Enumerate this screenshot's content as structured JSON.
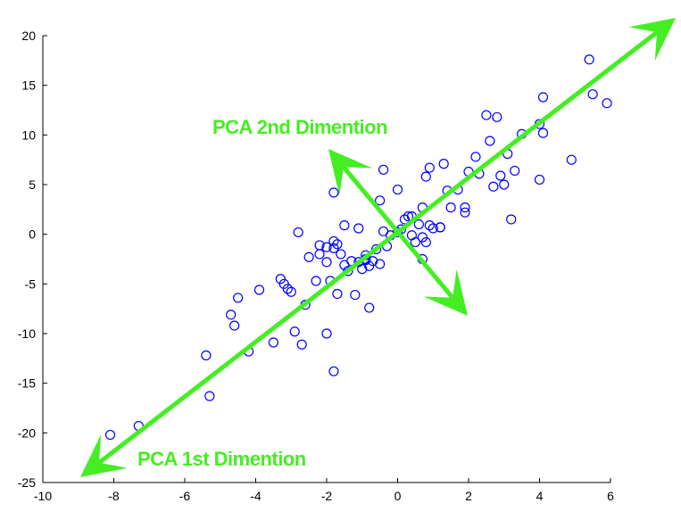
{
  "chart_data": {
    "type": "scatter",
    "title": "",
    "xlabel": "",
    "ylabel": "",
    "xlim": [
      -10,
      6
    ],
    "ylim": [
      -25,
      20
    ],
    "x_ticks": [
      -10,
      -8,
      -6,
      -4,
      -2,
      0,
      2,
      4,
      6
    ],
    "y_ticks": [
      -25,
      -20,
      -15,
      -10,
      -5,
      0,
      5,
      10,
      15,
      20
    ],
    "x_tick_labels": [
      "-10",
      "-8",
      "-6",
      "-4",
      "-2",
      "0",
      "2",
      "4",
      "6"
    ],
    "y_tick_labels": [
      "-25",
      "-20",
      "-15",
      "-10",
      "-5",
      "0",
      "5",
      "10",
      "15",
      "20"
    ],
    "grid": false,
    "marker": "circle",
    "marker_filled": false,
    "colors": {
      "points": "#0000ff",
      "arrows": "#44ee22",
      "axes": "#000000"
    },
    "series": [
      {
        "x": [
          -8.1,
          -7.3,
          -5.3,
          -5.4,
          -4.2,
          -3.5,
          -3.9,
          -4.7,
          -4.6,
          -4.5,
          -3.3,
          -3.2,
          -3.1,
          -3.0,
          -2.9,
          -2.7,
          -2.6,
          -2.5,
          -2.3,
          -2.2,
          -2.0,
          -1.9,
          -2.0,
          -1.8,
          -1.7,
          -1.8,
          -1.6,
          -1.5,
          -1.4,
          -1.3,
          -1.2,
          -1.1,
          -1.0,
          -0.9,
          -0.8,
          -0.8,
          -0.7,
          -0.6,
          -0.5,
          -0.5,
          -0.4,
          -0.3,
          -0.2,
          0.0,
          0.1,
          0.2,
          0.3,
          0.4,
          0.5,
          0.6,
          0.7,
          0.8,
          0.9,
          1.0,
          1.2,
          1.3,
          0.8,
          0.7,
          1.4,
          1.5,
          1.7,
          1.9,
          2.0,
          2.2,
          2.3,
          2.5,
          2.6,
          2.7,
          2.8,
          2.9,
          3.0,
          3.1,
          3.2,
          3.3,
          3.5,
          4.0,
          4.1,
          4.0,
          4.1,
          4.9,
          5.4,
          5.5,
          5.9,
          -0.4,
          0.0,
          -1.1,
          -1.7,
          -2.0,
          -1.8,
          -2.8,
          -0.9,
          -1.5,
          -2.2,
          0.9,
          1.2,
          0.7,
          0.4,
          1.9,
          -1.8,
          -0.9
        ],
        "y": [
          -20.2,
          -19.3,
          -16.3,
          -12.2,
          -11.8,
          -10.9,
          -5.6,
          -8.1,
          -9.2,
          -6.4,
          -4.5,
          -5.0,
          -5.5,
          -5.8,
          -9.8,
          -11.1,
          -7.1,
          -2.3,
          -4.7,
          -1.1,
          -2.8,
          -4.7,
          -10.0,
          -13.8,
          -6.0,
          -1.4,
          -2.0,
          0.9,
          -3.7,
          -2.7,
          -6.1,
          -2.8,
          -3.5,
          -2.5,
          -3.2,
          -7.4,
          -2.7,
          -1.5,
          -3.0,
          3.4,
          6.5,
          -1.2,
          -0.1,
          4.5,
          0.5,
          1.5,
          1.8,
          -0.1,
          -0.8,
          1.0,
          2.7,
          5.8,
          6.7,
          0.6,
          0.7,
          7.1,
          -0.8,
          -2.5,
          4.4,
          2.7,
          4.5,
          2.2,
          6.3,
          7.8,
          6.1,
          12.0,
          9.4,
          4.8,
          11.8,
          5.9,
          5.0,
          8.1,
          1.5,
          6.4,
          10.1,
          5.5,
          10.2,
          11.1,
          13.8,
          7.5,
          17.6,
          14.1,
          13.2,
          0.3,
          0.2,
          0.6,
          -1.0,
          -1.3,
          4.2,
          0.2,
          -2.6,
          -3.1,
          -2.0,
          0.9,
          0.7,
          -0.3,
          1.8,
          2.7,
          -0.7,
          -2.1
        ]
      }
    ],
    "annotations": [
      {
        "text": "PCA 2nd Dimention"
      },
      {
        "text": "PCA 1st Dimention"
      }
    ]
  }
}
